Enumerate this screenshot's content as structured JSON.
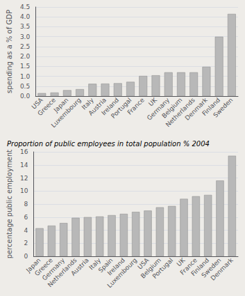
{
  "chart_data": [
    {
      "type": "bar",
      "ylabel": "spending as a % of GDP",
      "categories": [
        "USA",
        "Greece",
        "Japan",
        "Luxembourg",
        "Italy",
        "Austria",
        "Ireland",
        "Portugal",
        "France",
        "UK",
        "Germany",
        "Belgium",
        "Netherlands",
        "Denmark",
        "Finland",
        "Sweden"
      ],
      "values": [
        0.15,
        0.18,
        0.3,
        0.35,
        0.62,
        0.63,
        0.65,
        0.72,
        1.02,
        1.05,
        1.2,
        1.2,
        1.2,
        1.48,
        3.0,
        4.15
      ],
      "color": "#b8b8b8",
      "ylim": [
        0,
        4.5
      ],
      "yticks": [
        {
          "value": 0,
          "label": "0.0"
        },
        0.5,
        {
          "value": 1,
          "label": "1.0"
        },
        1.5,
        {
          "value": 2,
          "label": "2.0"
        },
        2.5,
        {
          "value": 3,
          "label": "3.0"
        },
        3.5,
        {
          "value": 4,
          "label": "4.0"
        },
        4.5
      ],
      "grid": true
    },
    {
      "type": "bar",
      "title": "Proportion of public employees in total population % 2004",
      "ylabel": "percentage public employment",
      "categories": [
        "Japan",
        "Greece",
        "Germany",
        "Netherlands",
        "Austria",
        "Italy",
        "Spain",
        "Ireland",
        "Luxembourg",
        "USA",
        "Belgium",
        "Portugal",
        "UK",
        "France",
        "Finland",
        "Sweden",
        "Denmark"
      ],
      "values": [
        4.3,
        4.7,
        5.1,
        5.9,
        6.0,
        6.1,
        6.3,
        6.5,
        6.8,
        7.0,
        7.5,
        7.7,
        8.8,
        9.2,
        9.4,
        11.6,
        15.4
      ],
      "color": "#b8b8b8",
      "ylim": [
        0,
        16
      ],
      "yticks": [
        0,
        2,
        4,
        6,
        8,
        10,
        12,
        14,
        16
      ],
      "grid": true
    }
  ]
}
